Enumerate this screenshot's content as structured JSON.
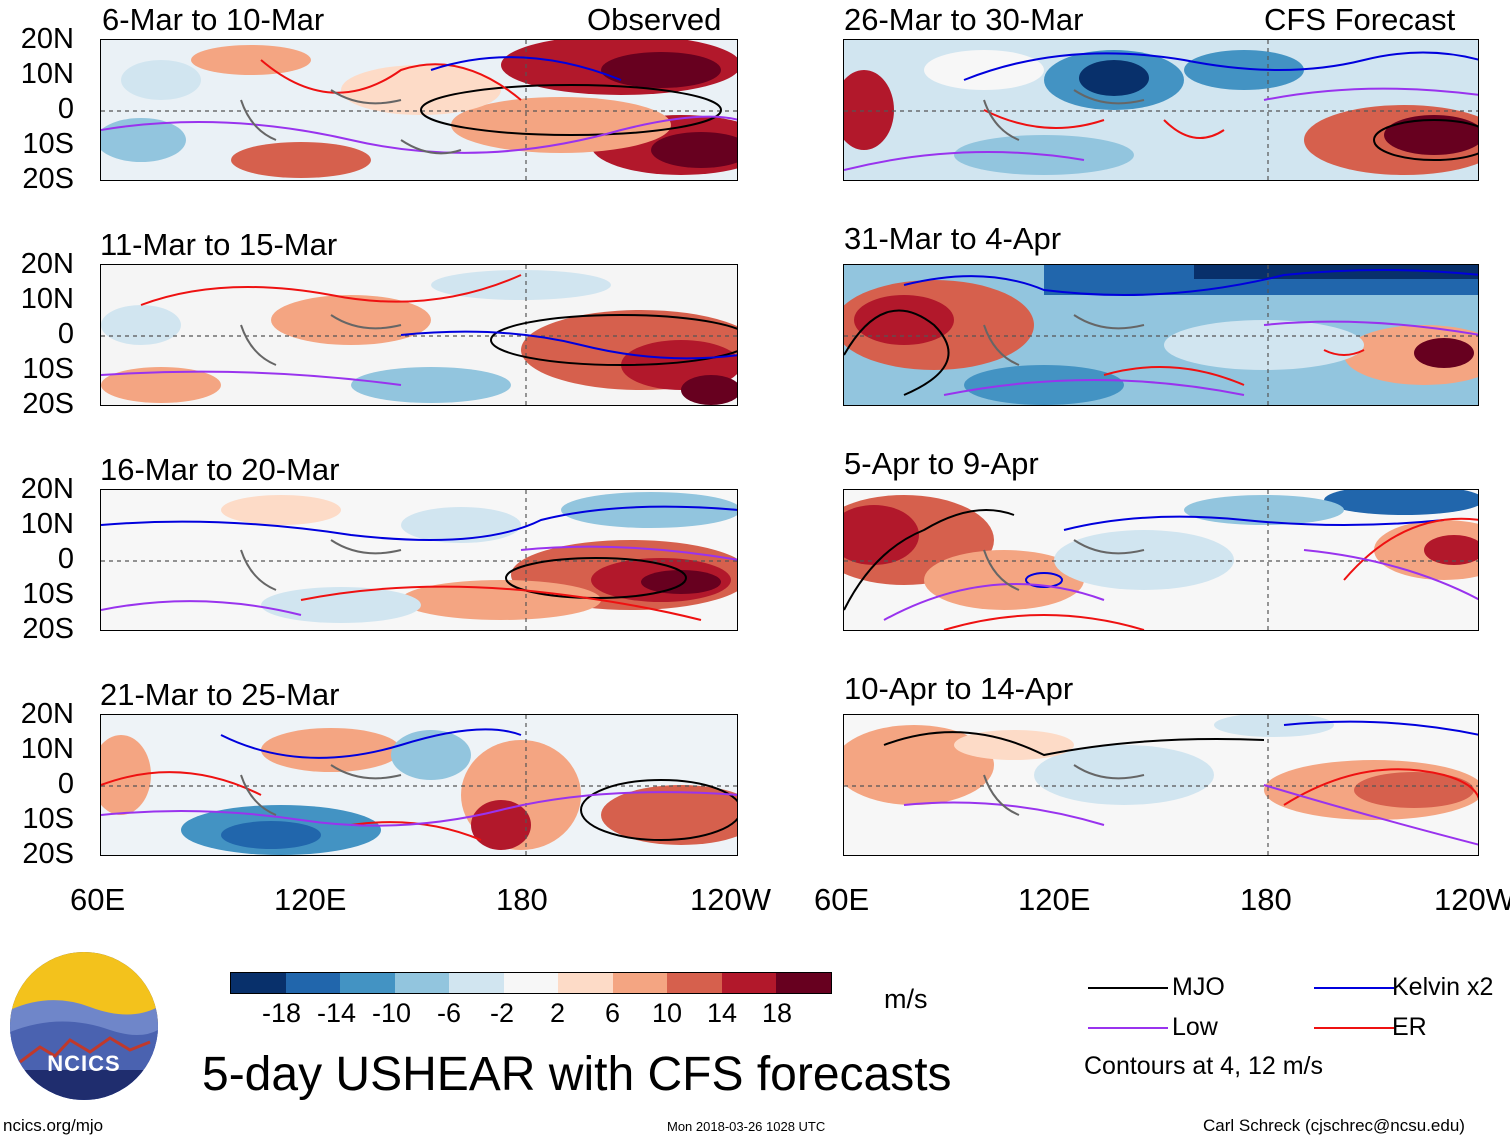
{
  "observed_label": "Observed",
  "forecast_label": "CFS Forecast",
  "lat_labels": [
    "20N",
    "10N",
    "0",
    "10S",
    "20S"
  ],
  "lon_labels": [
    "60E",
    "120E",
    "180",
    "120W"
  ],
  "panels": [
    {
      "title": "6-Mar to 10-Mar",
      "tag": "Observed"
    },
    {
      "title": "11-Mar to 15-Mar",
      "tag": ""
    },
    {
      "title": "16-Mar to 20-Mar",
      "tag": ""
    },
    {
      "title": "21-Mar to 25-Mar",
      "tag": ""
    },
    {
      "title": "26-Mar to 30-Mar",
      "tag": "CFS Forecast"
    },
    {
      "title": "31-Mar to 4-Apr",
      "tag": ""
    },
    {
      "title": "5-Apr to 9-Apr",
      "tag": ""
    },
    {
      "title": "10-Apr to 14-Apr",
      "tag": ""
    }
  ],
  "colorbar": {
    "colors": [
      "#08306b",
      "#2166ac",
      "#4393c3",
      "#92c5de",
      "#d1e5f0",
      "#f7f7f7",
      "#fddbc7",
      "#f4a582",
      "#d6604d",
      "#b2182b",
      "#67001f"
    ],
    "labels": [
      "-18",
      "-14",
      "-10",
      "-6",
      "-2",
      "2",
      "6",
      "10",
      "14",
      "18"
    ],
    "units": "m/s"
  },
  "legend": {
    "items": [
      {
        "label": "MJO",
        "color": "#000000"
      },
      {
        "label": "Kelvin x2",
        "color": "#0000dd"
      },
      {
        "label": "Low",
        "color": "#9933ee"
      },
      {
        "label": "ER",
        "color": "#ee1111"
      }
    ],
    "note": "Contours at 4, 12 m/s"
  },
  "main_title": "5-day USHEAR with CFS forecasts",
  "footer": {
    "left": "ncics.org/mjo",
    "center": "Mon 2018-03-26 1028 UTC",
    "right": "Carl Schreck (cjschrec@ncsu.edu)"
  },
  "logo_text": "NCICS"
}
